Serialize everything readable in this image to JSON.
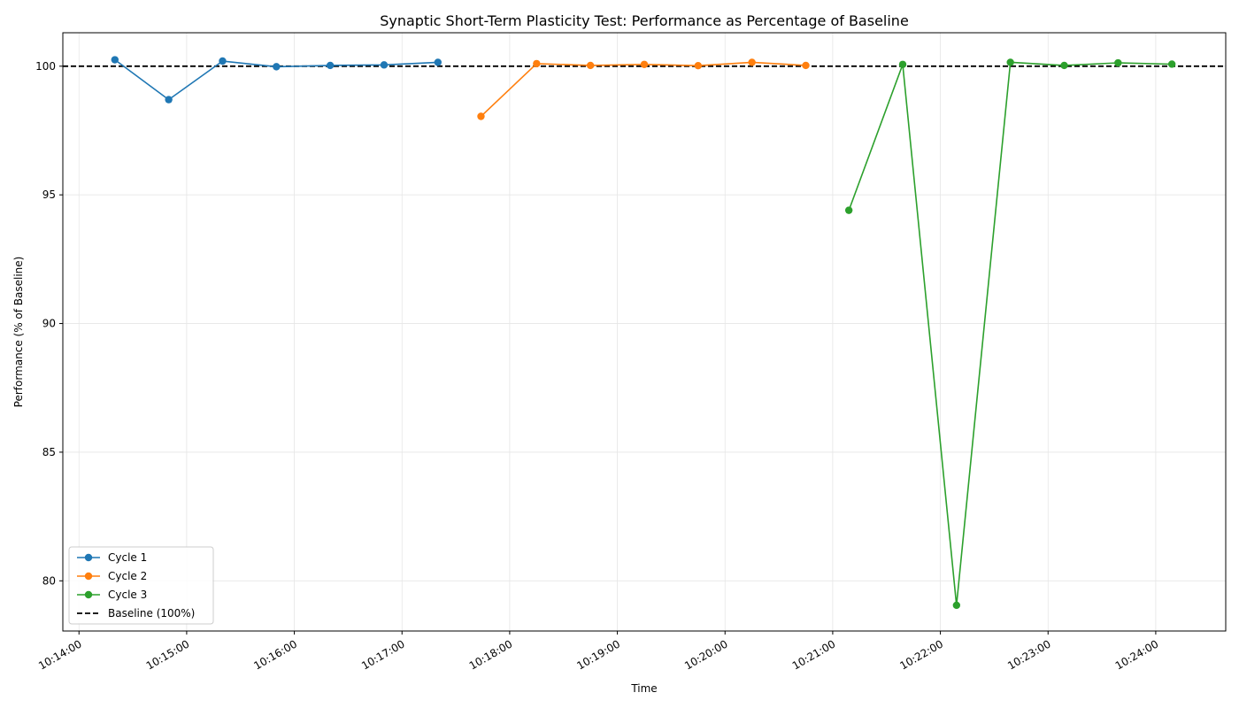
{
  "chart_data": {
    "type": "line",
    "title": "Synaptic Short-Term Plasticity Test: Performance as Percentage of Baseline",
    "xlabel": "Time",
    "ylabel": "Performance (% of Baseline)",
    "xlim": [
      "10:13:51",
      "10:24:39"
    ],
    "ylim": [
      78.05,
      101.3
    ],
    "x_ticks": [
      "10:14:00",
      "10:15:00",
      "10:16:00",
      "10:17:00",
      "10:18:00",
      "10:19:00",
      "10:20:00",
      "10:21:00",
      "10:22:00",
      "10:23:00",
      "10:24:00"
    ],
    "y_ticks": [
      80,
      85,
      90,
      95,
      100
    ],
    "grid": true,
    "legend_position": "lower-left",
    "series": [
      {
        "name": "Cycle 1",
        "color": "#1f77b4",
        "marker": "circle",
        "points": [
          {
            "x": "10:14:20",
            "y": 100.25
          },
          {
            "x": "10:14:50",
            "y": 98.7
          },
          {
            "x": "10:15:20",
            "y": 100.2
          },
          {
            "x": "10:15:50",
            "y": 99.98
          },
          {
            "x": "10:16:20",
            "y": 100.03
          },
          {
            "x": "10:16:50",
            "y": 100.05
          },
          {
            "x": "10:17:20",
            "y": 100.15
          }
        ]
      },
      {
        "name": "Cycle 2",
        "color": "#ff7f0e",
        "marker": "circle",
        "points": [
          {
            "x": "10:17:44",
            "y": 98.05
          },
          {
            "x": "10:18:15",
            "y": 100.1
          },
          {
            "x": "10:18:45",
            "y": 100.03
          },
          {
            "x": "10:19:15",
            "y": 100.07
          },
          {
            "x": "10:19:45",
            "y": 100.02
          },
          {
            "x": "10:20:15",
            "y": 100.15
          },
          {
            "x": "10:20:45",
            "y": 100.03
          }
        ]
      },
      {
        "name": "Cycle 3",
        "color": "#2ca02c",
        "marker": "circle",
        "points": [
          {
            "x": "10:21:09",
            "y": 94.4
          },
          {
            "x": "10:21:39",
            "y": 100.07
          },
          {
            "x": "10:22:09",
            "y": 79.05
          },
          {
            "x": "10:22:39",
            "y": 100.15
          },
          {
            "x": "10:23:09",
            "y": 100.03
          },
          {
            "x": "10:23:39",
            "y": 100.13
          },
          {
            "x": "10:24:09",
            "y": 100.08
          }
        ]
      }
    ],
    "baseline": {
      "name": "Baseline (100%)",
      "value": 100,
      "color": "#000000",
      "style": "dashed"
    }
  }
}
